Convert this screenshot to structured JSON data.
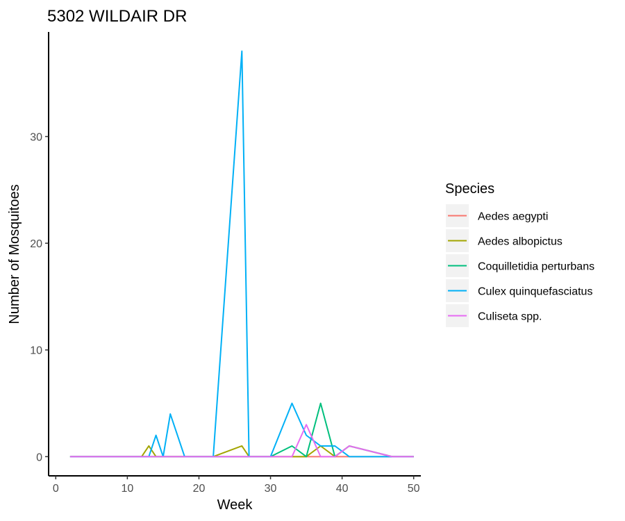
{
  "chart_data": {
    "type": "line",
    "title": "5302 WILDAIR DR",
    "xlabel": "Week",
    "ylabel": "Number of Mosquitoes",
    "xlim": [
      -1,
      51
    ],
    "ylim": [
      -1.8,
      39.8
    ],
    "x_ticks": [
      0,
      10,
      20,
      30,
      40,
      50
    ],
    "y_ticks": [
      0,
      10,
      20,
      30
    ],
    "grid": false,
    "legend": {
      "title": "Species",
      "position": "right"
    },
    "series": [
      {
        "name": "Aedes aegypti",
        "color": "#F8766D",
        "points": [
          [
            2,
            0
          ],
          [
            12,
            0
          ],
          [
            13,
            0
          ],
          [
            14,
            0
          ],
          [
            15,
            0
          ],
          [
            16,
            0
          ],
          [
            17,
            0
          ],
          [
            18,
            0
          ],
          [
            22,
            0
          ],
          [
            26,
            0
          ],
          [
            27,
            0
          ],
          [
            30,
            0
          ],
          [
            33,
            0
          ],
          [
            35,
            0
          ],
          [
            37,
            0
          ],
          [
            39,
            0
          ],
          [
            41,
            0
          ],
          [
            47,
            0
          ],
          [
            50,
            0
          ]
        ]
      },
      {
        "name": "Aedes albopictus",
        "color": "#A3A500",
        "points": [
          [
            2,
            0
          ],
          [
            12,
            0
          ],
          [
            13,
            1
          ],
          [
            14,
            0
          ],
          [
            15,
            0
          ],
          [
            16,
            0
          ],
          [
            18,
            0
          ],
          [
            22,
            0
          ],
          [
            26,
            1
          ],
          [
            27,
            0
          ],
          [
            30,
            0
          ],
          [
            33,
            0
          ],
          [
            35,
            0
          ],
          [
            37,
            1
          ],
          [
            39,
            0
          ],
          [
            41,
            1
          ],
          [
            47,
            0
          ],
          [
            50,
            0
          ]
        ]
      },
      {
        "name": "Coquilletidia perturbans",
        "color": "#00BF7D",
        "points": [
          [
            2,
            0
          ],
          [
            12,
            0
          ],
          [
            14,
            0
          ],
          [
            16,
            0
          ],
          [
            18,
            0
          ],
          [
            22,
            0
          ],
          [
            26,
            0
          ],
          [
            27,
            0
          ],
          [
            30,
            0
          ],
          [
            33,
            1
          ],
          [
            35,
            0
          ],
          [
            37,
            5
          ],
          [
            39,
            0
          ],
          [
            41,
            1
          ],
          [
            47,
            0
          ],
          [
            50,
            0
          ]
        ]
      },
      {
        "name": "Culex quinquefasciatus",
        "color": "#00B0F6",
        "points": [
          [
            2,
            0
          ],
          [
            12,
            0
          ],
          [
            13,
            0
          ],
          [
            14,
            2
          ],
          [
            15,
            0
          ],
          [
            16,
            4
          ],
          [
            18,
            0
          ],
          [
            22,
            0
          ],
          [
            26,
            38
          ],
          [
            27,
            0
          ],
          [
            30,
            0
          ],
          [
            33,
            5
          ],
          [
            35,
            2
          ],
          [
            37,
            1
          ],
          [
            39,
            1
          ],
          [
            41,
            0
          ],
          [
            47,
            0
          ],
          [
            50,
            0
          ]
        ]
      },
      {
        "name": "Culiseta spp.",
        "color": "#E76BF3",
        "points": [
          [
            2,
            0
          ],
          [
            12,
            0
          ],
          [
            14,
            0
          ],
          [
            16,
            0
          ],
          [
            18,
            0
          ],
          [
            22,
            0
          ],
          [
            26,
            0
          ],
          [
            27,
            0
          ],
          [
            30,
            0
          ],
          [
            33,
            0
          ],
          [
            35,
            3
          ],
          [
            37,
            0
          ],
          [
            39,
            0
          ],
          [
            41,
            1
          ],
          [
            47,
            0
          ],
          [
            50,
            0
          ]
        ]
      }
    ]
  }
}
